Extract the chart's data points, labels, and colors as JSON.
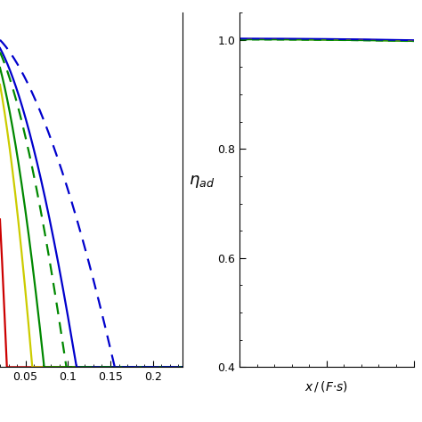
{
  "left_panel": {
    "xlim": [
      0.02,
      0.235
    ],
    "ylim": [
      0.0,
      1.05
    ],
    "xticks": [
      0.05,
      0.1,
      0.15,
      0.2
    ],
    "xticklabels": [
      "0.05",
      "0.1",
      "0.15",
      "0.2"
    ],
    "curves": [
      {
        "color": "#cc0000",
        "linestyle": "solid",
        "x0": 0.0,
        "scale": 0.028
      },
      {
        "color": "#cccc00",
        "linestyle": "solid",
        "x0": 0.0,
        "scale": 0.058
      },
      {
        "color": "#008800",
        "linestyle": "solid",
        "x0": 0.0,
        "scale": 0.072
      },
      {
        "color": "#0000cc",
        "linestyle": "solid",
        "x0": 0.0,
        "scale": 0.11
      },
      {
        "color": "#008800",
        "linestyle": "dashed",
        "x0": 0.0,
        "scale": 0.098
      },
      {
        "color": "#0000cc",
        "linestyle": "dashed",
        "x0": 0.0,
        "scale": 0.155
      }
    ]
  },
  "right_panel": {
    "xlim": [
      0.0,
      1.0
    ],
    "ylim": [
      0.4,
      1.05
    ],
    "yticks": [
      0.4,
      0.6,
      0.8,
      1.0
    ],
    "xticks": [
      0.0,
      0.5,
      1.0
    ],
    "ylabel": "$\\eta_{ad}$",
    "xlabel": "$x\\,/\\,(F{\\cdot}s)$",
    "curves": [
      {
        "color": "#cc0000",
        "linestyle": "solid",
        "y_const": 1.002
      },
      {
        "color": "#ffcc00",
        "linestyle": "solid",
        "y_const": 1.001
      },
      {
        "color": "#008800",
        "linestyle": "solid",
        "y_const": 1.0005
      },
      {
        "color": "#0000cc",
        "linestyle": "solid",
        "y_const": 1.003
      },
      {
        "color": "#008800",
        "linestyle": "dashed",
        "y_const": 1.0003
      },
      {
        "color": "#0000cc",
        "linestyle": "dashed",
        "y_const": 1.002
      }
    ]
  }
}
